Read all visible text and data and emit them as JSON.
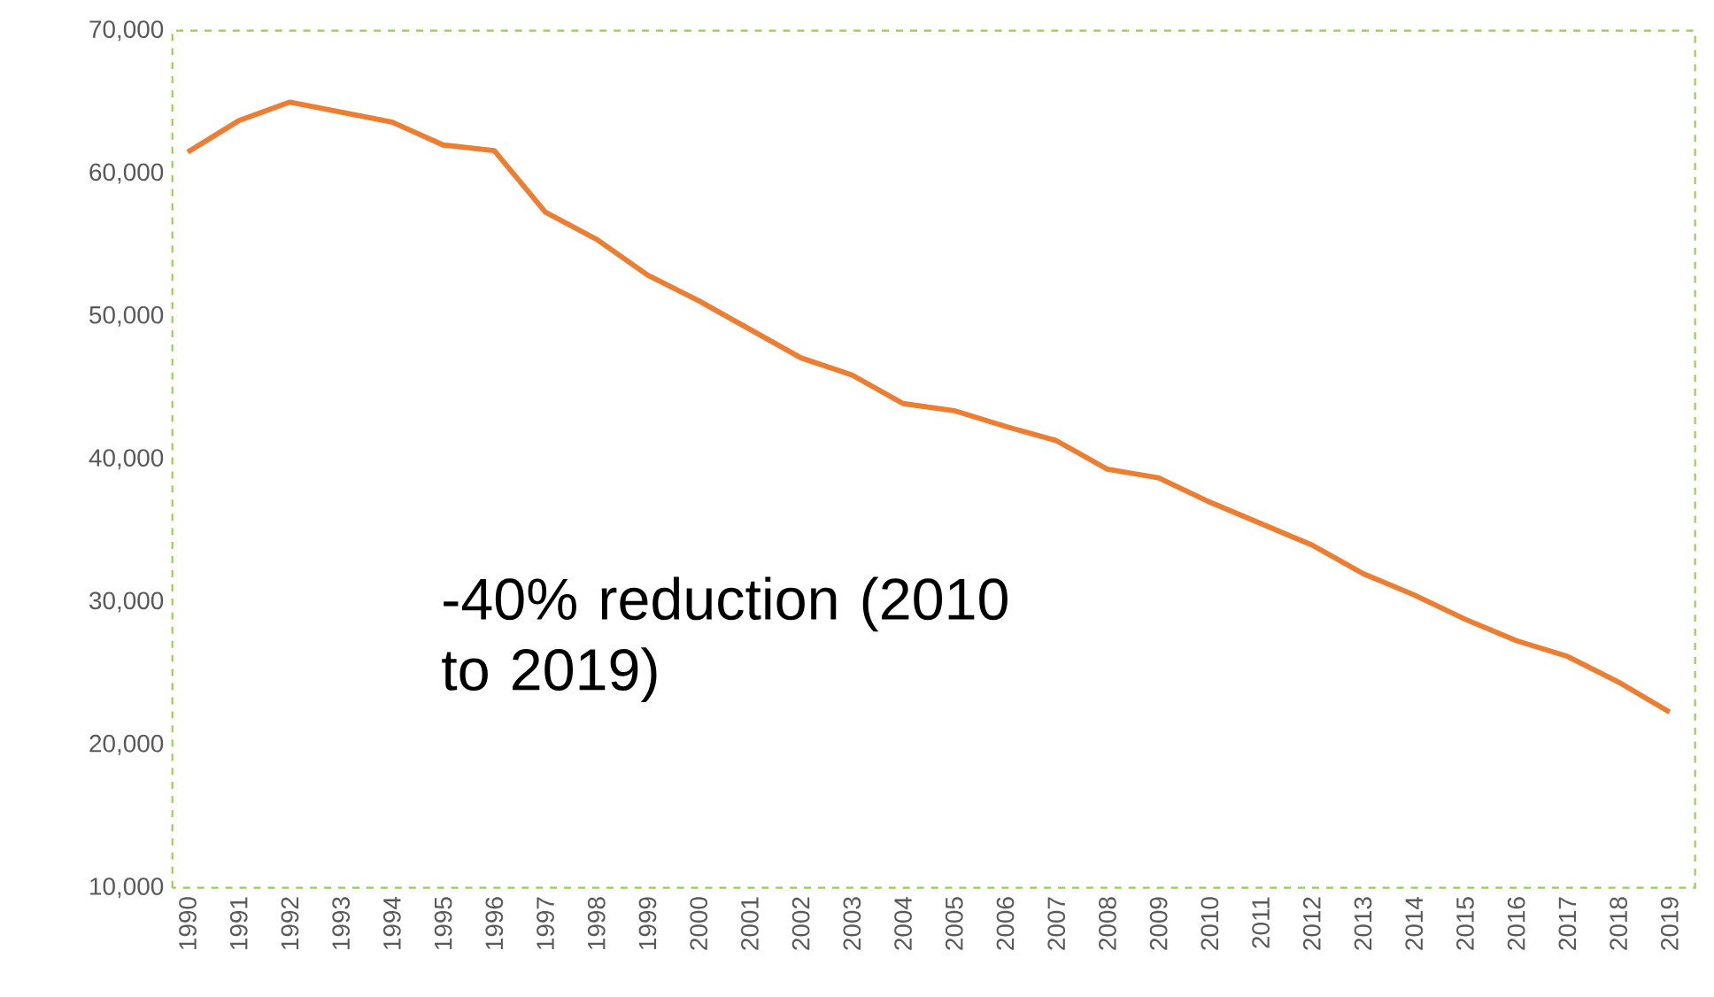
{
  "chart_data": {
    "type": "line",
    "categories": [
      "1990",
      "1991",
      "1992",
      "1993",
      "1994",
      "1995",
      "1996",
      "1997",
      "1998",
      "1999",
      "2000",
      "2001",
      "2002",
      "2003",
      "2004",
      "2005",
      "2006",
      "2007",
      "2008",
      "2009",
      "2010",
      "2011",
      "2012",
      "2013",
      "2014",
      "2015",
      "2016",
      "2017",
      "2018",
      "2019"
    ],
    "series": [
      {
        "color": "#ed7d31",
        "values": [
          61500,
          63700,
          65000,
          64300,
          63600,
          62000,
          61600,
          57300,
          55400,
          52900,
          51100,
          49100,
          47100,
          45900,
          43900,
          43400,
          42300,
          41300,
          39300,
          38700,
          37000,
          35500,
          34000,
          32000,
          30500,
          28800,
          27300,
          26200,
          24400,
          22300
        ]
      }
    ],
    "ylim": [
      10000,
      70000
    ],
    "yticks": [
      {
        "value": 10000,
        "label": "10,000"
      },
      {
        "value": 20000,
        "label": "20,000"
      },
      {
        "value": 30000,
        "label": "30,000"
      },
      {
        "value": 40000,
        "label": "40,000"
      },
      {
        "value": 50000,
        "label": "50,000"
      },
      {
        "value": 60000,
        "label": "60,000"
      },
      {
        "value": 70000,
        "label": "70,000"
      }
    ],
    "annotations": [
      "-40% reduction (2010 to 2019)"
    ]
  }
}
